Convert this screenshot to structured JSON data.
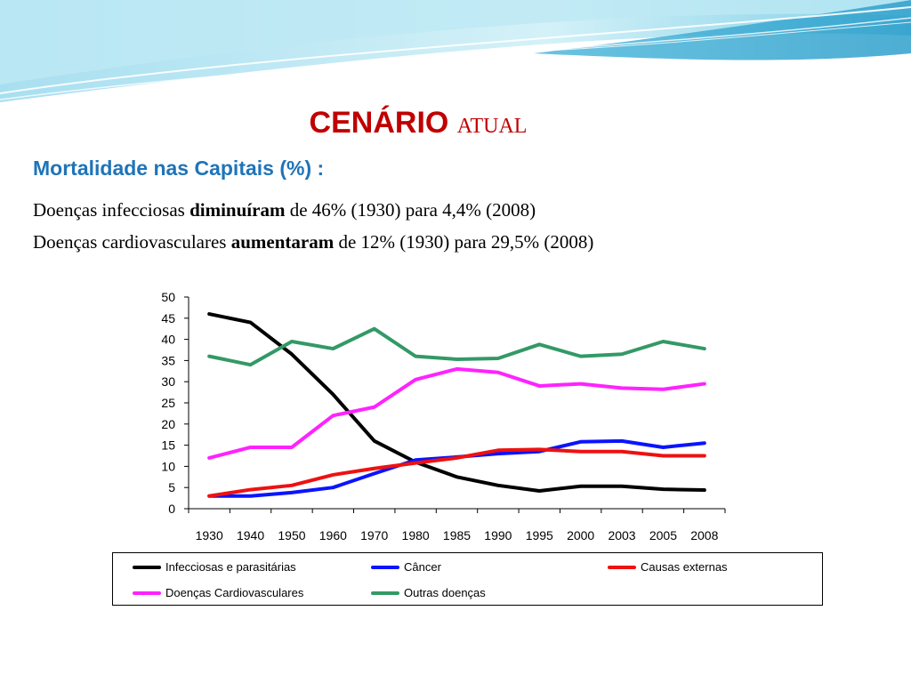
{
  "slide": {
    "title_part1": "CENÁRIO",
    "title_part2": "atual",
    "subtitle": "Mortalidade nas Capitais (%) :",
    "line1": {
      "prefix": "Doenças infecciosas ",
      "bold": "diminuíram",
      "suffix": " de 46% (1930) para 4,4% (2008)"
    },
    "line2": {
      "prefix": "Doenças cardiovasculares ",
      "bold": "aumentaram",
      "suffix": " de 12% (1930) para 29,5% (2008)"
    }
  },
  "colors": {
    "title": "#c00000",
    "subtitle": "#1f74b8",
    "banner_light": "#cdeef7",
    "banner_dark": "#35a7cf"
  },
  "chart_data": {
    "type": "line",
    "title": "",
    "xlabel": "",
    "ylabel": "",
    "ylim": [
      0,
      50
    ],
    "yticks": [
      0,
      5,
      10,
      15,
      20,
      25,
      30,
      35,
      40,
      45,
      50
    ],
    "categories": [
      "1930",
      "1940",
      "1950",
      "1960",
      "1970",
      "1980",
      "1985",
      "1990",
      "1995",
      "2000",
      "2003",
      "2005",
      "2008"
    ],
    "grid": false,
    "legend_position": "bottom",
    "series": [
      {
        "name": "Infecciosas e parasitárias",
        "color": "#000000",
        "values": [
          46,
          44,
          36.5,
          27,
          16,
          11,
          7.5,
          5.5,
          4.2,
          5.3,
          5.3,
          4.6,
          4.4
        ]
      },
      {
        "name": "Câncer",
        "color": "#0a14ff",
        "values": [
          3,
          3,
          3.8,
          5,
          8.3,
          11.5,
          12.2,
          13,
          13.5,
          15.8,
          16,
          14.5,
          15.5
        ]
      },
      {
        "name": "Causas externas",
        "color": "#ee1111",
        "values": [
          3,
          4.5,
          5.5,
          8,
          9.5,
          10.8,
          12,
          13.8,
          14,
          13.5,
          13.5,
          12.5,
          12.5
        ]
      },
      {
        "name": "Doenças Cardiovasculares",
        "color": "#ff22ff",
        "values": [
          12,
          14.5,
          14.5,
          22,
          24,
          30.5,
          33,
          32.2,
          29,
          29.5,
          28.5,
          28.2,
          29.5
        ]
      },
      {
        "name": "Outras doenças",
        "color": "#339966",
        "values": [
          36,
          34,
          39.5,
          37.8,
          42.5,
          36,
          35.3,
          35.5,
          38.8,
          36,
          36.5,
          39.5,
          37.8
        ]
      }
    ]
  }
}
